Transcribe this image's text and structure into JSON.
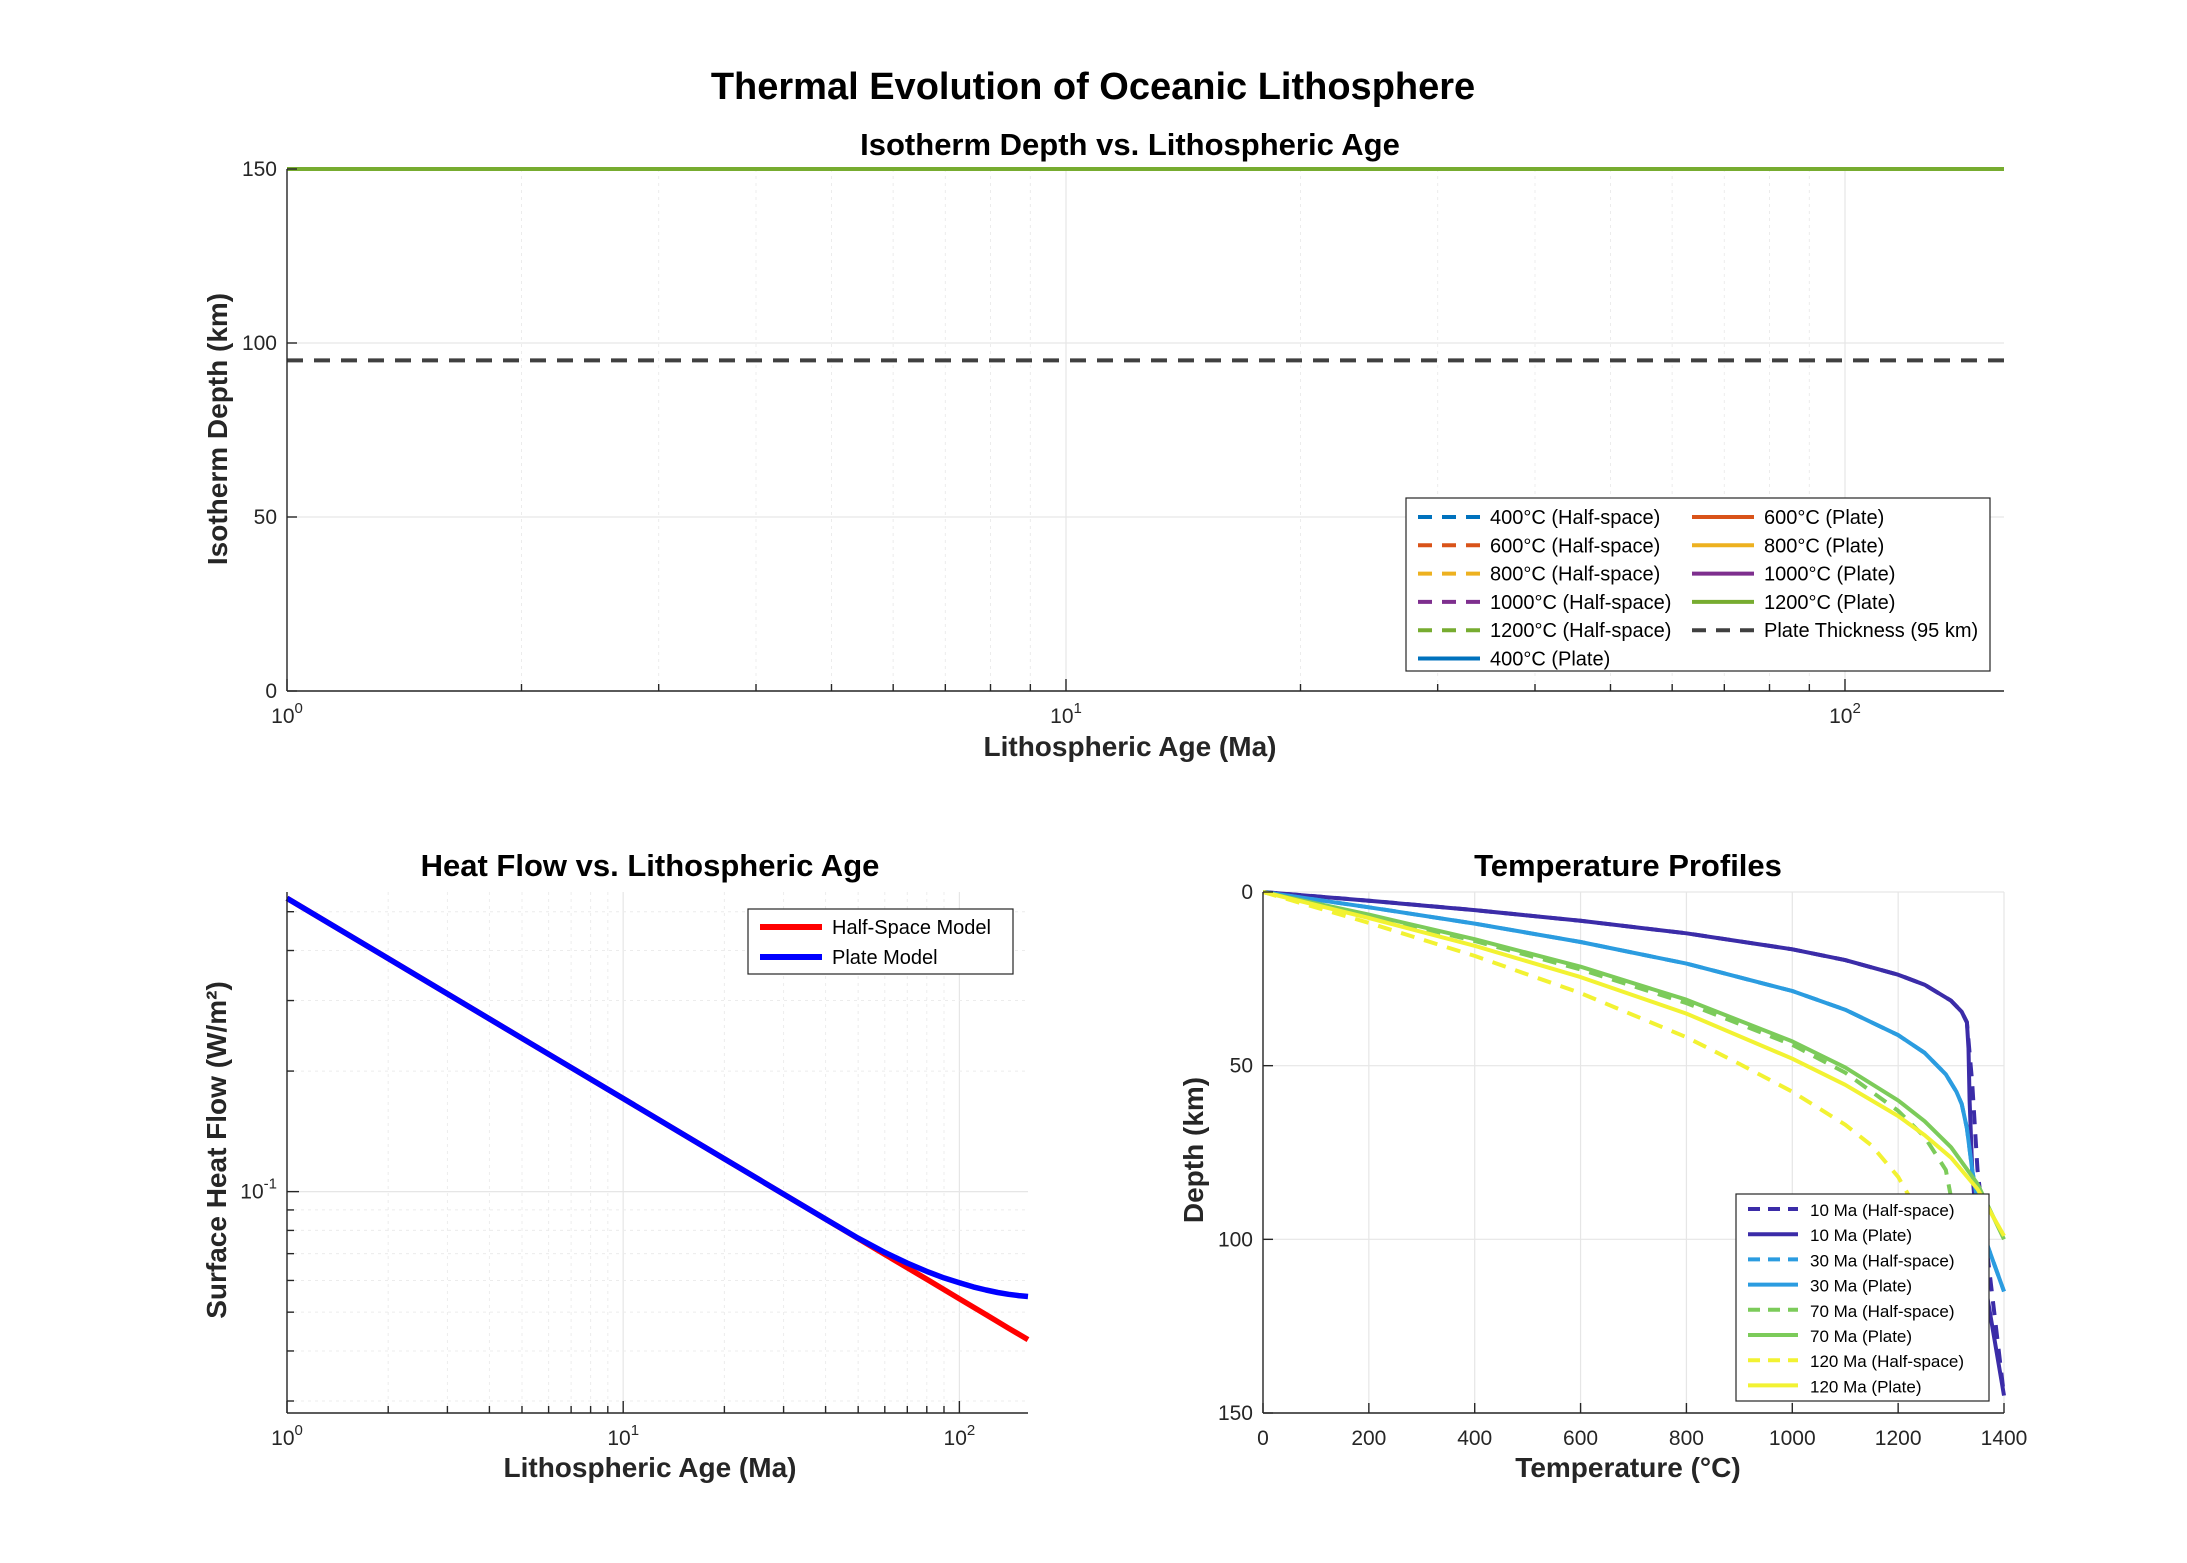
{
  "figure": {
    "title": "Thermal Evolution of Oceanic Lithosphere"
  },
  "chart_data": [
    {
      "type": "line",
      "title": "Isotherm Depth vs. Lithospheric Age",
      "xlabel": "Lithospheric Age (Ma)",
      "ylabel": "Isotherm Depth (km)",
      "xscale": "log",
      "xlim": [
        1,
        160
      ],
      "ylim": [
        0,
        150
      ],
      "xticks": [
        {
          "value": 1,
          "label": "10",
          "sup": "0"
        },
        {
          "value": 10,
          "label": "10",
          "sup": "1"
        },
        {
          "value": 100,
          "label": "10",
          "sup": "2"
        }
      ],
      "yticks": [
        {
          "value": 0,
          "label": "0"
        },
        {
          "value": 50,
          "label": "50"
        },
        {
          "value": 100,
          "label": "100"
        },
        {
          "value": 150,
          "label": "150"
        }
      ],
      "grid": true,
      "legend_position": "bottom-right",
      "legend_columns": 2,
      "series": [
        {
          "name": "400°C (Half-space)",
          "color": "#0072BD",
          "dash": "dashed",
          "x": [
            1,
            160
          ],
          "y": [
            150,
            150
          ]
        },
        {
          "name": "600°C (Half-space)",
          "color": "#D95319",
          "dash": "dashed",
          "x": [
            1,
            160
          ],
          "y": [
            150,
            150
          ]
        },
        {
          "name": "800°C (Half-space)",
          "color": "#EDB120",
          "dash": "dashed",
          "x": [
            1,
            160
          ],
          "y": [
            150,
            150
          ]
        },
        {
          "name": "1000°C (Half-space)",
          "color": "#7E2F8E",
          "dash": "dashed",
          "x": [
            1,
            160
          ],
          "y": [
            150,
            150
          ]
        },
        {
          "name": "1200°C (Half-space)",
          "color": "#77AC30",
          "dash": "dashed",
          "x": [
            1,
            160
          ],
          "y": [
            150,
            150
          ]
        },
        {
          "name": "400°C (Plate)",
          "color": "#0072BD",
          "dash": "solid",
          "x": [
            1,
            160
          ],
          "y": [
            150,
            150
          ]
        },
        {
          "name": "600°C (Plate)",
          "color": "#D95319",
          "dash": "solid",
          "x": [
            1,
            160
          ],
          "y": [
            150,
            150
          ]
        },
        {
          "name": "800°C (Plate)",
          "color": "#EDB120",
          "dash": "solid",
          "x": [
            1,
            160
          ],
          "y": [
            150,
            150
          ]
        },
        {
          "name": "1000°C (Plate)",
          "color": "#7E2F8E",
          "dash": "solid",
          "x": [
            1,
            160
          ],
          "y": [
            150,
            150
          ]
        },
        {
          "name": "1200°C (Plate)",
          "color": "#77AC30",
          "dash": "solid",
          "x": [
            1,
            160
          ],
          "y": [
            150,
            150
          ]
        },
        {
          "name": "Plate Thickness (95 km)",
          "color": "#404040",
          "dash": "dashed",
          "x": [
            1,
            160
          ],
          "y": [
            95,
            95
          ]
        }
      ]
    },
    {
      "type": "line",
      "title": "Heat Flow vs. Lithospheric Age",
      "xlabel": "Lithospheric Age (Ma)",
      "ylabel": "Surface Heat Flow (W/m²)",
      "xscale": "log",
      "yscale": "log",
      "xlim": [
        1,
        160
      ],
      "ylim": [
        0.028,
        0.56
      ],
      "xticks": [
        {
          "value": 1,
          "label": "10",
          "sup": "0"
        },
        {
          "value": 10,
          "label": "10",
          "sup": "1"
        },
        {
          "value": 100,
          "label": "10",
          "sup": "2"
        }
      ],
      "yticks": [
        {
          "value": 0.1,
          "label": "10",
          "sup": "-1"
        }
      ],
      "grid": true,
      "legend_position": "top-right",
      "series": [
        {
          "name": "Half-Space Model",
          "color": "#FF0000",
          "x": [
            1,
            2,
            5,
            10,
            20,
            40,
            60,
            80,
            100,
            120,
            140,
            160
          ],
          "y": [
            0.54,
            0.382,
            0.2415,
            0.1708,
            0.1207,
            0.0854,
            0.0697,
            0.0604,
            0.054,
            0.0493,
            0.0456,
            0.0427
          ]
        },
        {
          "name": "Plate Model",
          "color": "#0000FF",
          "x": [
            1,
            2,
            5,
            10,
            20,
            40,
            50,
            60,
            70,
            80,
            90,
            100,
            110,
            120,
            130,
            140,
            150,
            160
          ],
          "y": [
            0.54,
            0.382,
            0.2415,
            0.1708,
            0.1207,
            0.0854,
            0.0765,
            0.0705,
            0.0663,
            0.0632,
            0.0609,
            0.0592,
            0.0578,
            0.0568,
            0.056,
            0.0554,
            0.055,
            0.0547
          ]
        }
      ]
    },
    {
      "type": "line",
      "title": "Temperature Profiles",
      "xlabel": "Temperature (°C)",
      "ylabel": "Depth (km)",
      "xlim": [
        0,
        1400
      ],
      "ylim": [
        0,
        150
      ],
      "y_reversed": true,
      "xticks": [
        {
          "value": 0,
          "label": "0"
        },
        {
          "value": 200,
          "label": "200"
        },
        {
          "value": 400,
          "label": "400"
        },
        {
          "value": 600,
          "label": "600"
        },
        {
          "value": 800,
          "label": "800"
        },
        {
          "value": 1000,
          "label": "1000"
        },
        {
          "value": 1200,
          "label": "1200"
        },
        {
          "value": 1400,
          "label": "1400"
        }
      ],
      "yticks": [
        {
          "value": 0,
          "label": "0"
        },
        {
          "value": 50,
          "label": "50"
        },
        {
          "value": 100,
          "label": "100"
        },
        {
          "value": 150,
          "label": "150"
        }
      ],
      "grid": true,
      "legend_position": "bottom-right",
      "series": [
        {
          "name": "10 Ma (Half-space)",
          "color": "#3B2CA8",
          "dash": "dashed",
          "x": [
            0,
            200,
            400,
            600,
            800,
            1000,
            1100,
            1200,
            1250,
            1300,
            1320,
            1330,
            1340,
            1350,
            1400
          ],
          "y": [
            0,
            2.5,
            5.2,
            8.3,
            11.9,
            16.5,
            19.6,
            23.8,
            26.7,
            31.3,
            34.5,
            37.5,
            55,
            80,
            145
          ]
        },
        {
          "name": "10 Ma (Plate)",
          "color": "#3B2CA8",
          "dash": "solid",
          "x": [
            0,
            200,
            400,
            600,
            800,
            1000,
            1100,
            1200,
            1250,
            1300,
            1320,
            1330,
            1333,
            1335,
            1340,
            1350,
            1400
          ],
          "y": [
            0,
            2.5,
            5.2,
            8.3,
            11.9,
            16.5,
            19.6,
            23.8,
            26.7,
            31.3,
            34.5,
            37.5,
            45,
            60,
            80,
            100,
            145
          ]
        },
        {
          "name": "30 Ma (Half-space)",
          "color": "#2B9CE0",
          "dash": "dashed",
          "x": [
            0,
            200,
            400,
            600,
            800,
            1000,
            1100,
            1200,
            1250,
            1290,
            1310,
            1320,
            1330,
            1340,
            1360,
            1400
          ],
          "y": [
            0,
            4.4,
            9.1,
            14.4,
            20.6,
            28.5,
            33.9,
            41.2,
            46.3,
            52.5,
            57.5,
            61,
            68,
            80,
            98,
            115
          ]
        },
        {
          "name": "30 Ma (Plate)",
          "color": "#2B9CE0",
          "dash": "solid",
          "x": [
            0,
            200,
            400,
            600,
            800,
            1000,
            1100,
            1200,
            1250,
            1290,
            1310,
            1320,
            1330,
            1340,
            1360,
            1400
          ],
          "y": [
            0,
            4.4,
            9.1,
            14.4,
            20.6,
            28.5,
            33.9,
            41.2,
            46.3,
            52.5,
            57.5,
            61,
            68,
            80,
            98,
            115
          ]
        },
        {
          "name": "70 Ma (Half-space)",
          "color": "#7CCB5A",
          "dash": "dashed",
          "x": [
            0,
            200,
            400,
            600,
            800,
            1000,
            1100,
            1200,
            1250,
            1290,
            1300
          ],
          "y": [
            0,
            6.8,
            14.1,
            22.3,
            32,
            44,
            52,
            63,
            70.5,
            80,
            88
          ]
        },
        {
          "name": "70 Ma (Plate)",
          "color": "#7CCB5A",
          "dash": "solid",
          "x": [
            0,
            200,
            400,
            600,
            800,
            1000,
            1100,
            1200,
            1250,
            1300,
            1350,
            1400
          ],
          "y": [
            0,
            6.5,
            13.6,
            21.5,
            31,
            43,
            50.5,
            60,
            66,
            73.5,
            84,
            100
          ]
        },
        {
          "name": "120 Ma (Half-space)",
          "color": "#F2F232",
          "dash": "dashed",
          "x": [
            0,
            200,
            400,
            600,
            800,
            900,
            1000,
            1100,
            1150,
            1200,
            1230
          ],
          "y": [
            0,
            8.9,
            18.4,
            29.1,
            41.8,
            49.5,
            57.5,
            67,
            73,
            82,
            90
          ]
        },
        {
          "name": "120 Ma (Plate)",
          "color": "#F2F232",
          "dash": "solid",
          "x": [
            0,
            200,
            400,
            600,
            800,
            1000,
            1100,
            1200,
            1250,
            1300,
            1350,
            1400
          ],
          "y": [
            0,
            7.5,
            15.5,
            24.5,
            35,
            48,
            55.5,
            64.5,
            70,
            76.5,
            85.5,
            99
          ]
        }
      ]
    }
  ]
}
